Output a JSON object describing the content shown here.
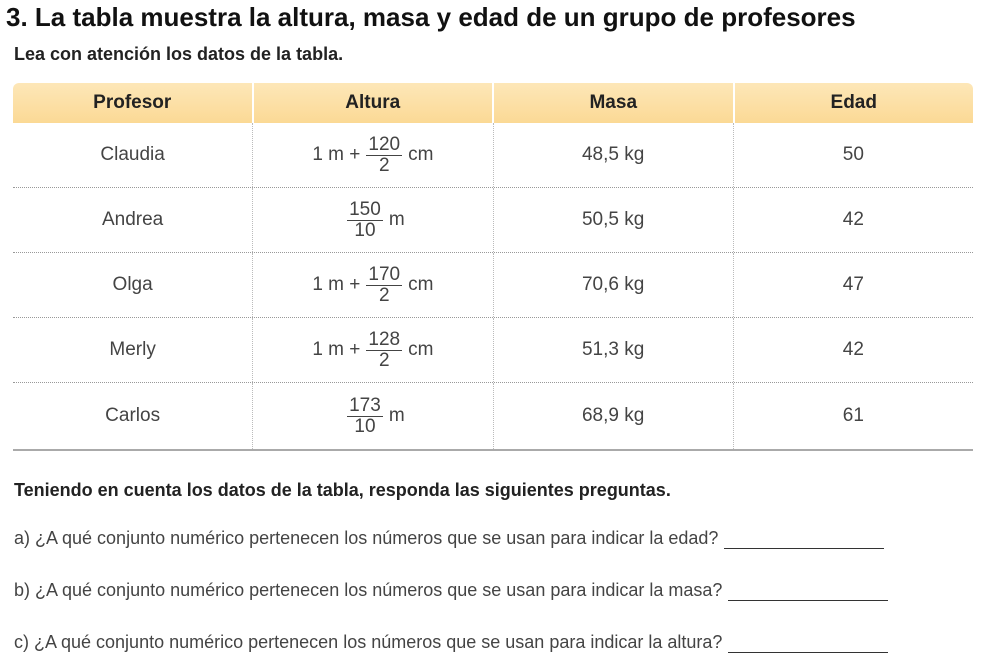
{
  "header": {
    "title": "3. La tabla muestra la altura, masa y edad de un grupo de profesores",
    "instruction": "Lea con atención los datos de la tabla."
  },
  "table": {
    "columns": [
      "Profesor",
      "Altura",
      "Masa",
      "Edad"
    ],
    "rows": [
      {
        "profesor": "Claudia",
        "altura": {
          "prefix": "1 m +",
          "numerator": "120",
          "denominator": "2",
          "unit": "cm"
        },
        "masa": "48,5 kg",
        "edad": "50"
      },
      {
        "profesor": "Andrea",
        "altura": {
          "numerator": "150",
          "denominator": "10",
          "unit": "m"
        },
        "masa": "50,5 kg",
        "edad": "42"
      },
      {
        "profesor": "Olga",
        "altura": {
          "prefix": "1 m +",
          "numerator": "170",
          "denominator": "2",
          "unit": "cm"
        },
        "masa": "70,6 kg",
        "edad": "47"
      },
      {
        "profesor": "Merly",
        "altura": {
          "prefix": "1 m +",
          "numerator": "128",
          "denominator": "2",
          "unit": "cm"
        },
        "masa": "51,3 kg",
        "edad": "42"
      },
      {
        "profesor": "Carlos",
        "altura": {
          "numerator": "173",
          "denominator": "10",
          "unit": "m"
        },
        "masa": "68,9 kg",
        "edad": "61"
      }
    ]
  },
  "questions": {
    "intro": "Teniendo en cuenta los datos de la tabla, responda las siguientes preguntas.",
    "items": [
      "a) ¿A qué conjunto numérico pertenecen los números que se usan para indicar la edad?",
      "b) ¿A qué conjunto numérico pertenecen los números que se usan para indicar la masa?",
      "c) ¿A qué conjunto numérico pertenecen los números que se usan para indicar la altura?"
    ]
  }
}
